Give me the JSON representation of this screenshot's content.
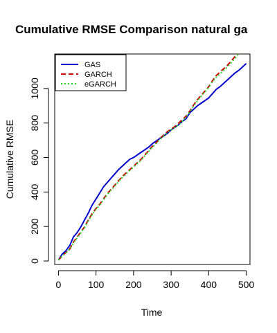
{
  "chart_data": {
    "type": "line",
    "title": "Cumulative RMSE Comparison natural ga",
    "xlabel": "Time",
    "ylabel": "Cumulative RMSE",
    "xlim": [
      -10,
      510
    ],
    "ylim": [
      -20,
      1200
    ],
    "xticks": [
      0,
      100,
      200,
      300,
      400,
      500
    ],
    "yticks": [
      0,
      200,
      400,
      600,
      800,
      1000
    ],
    "legend_position": "top-left",
    "series": [
      {
        "name": "GAS",
        "color": "#0000cd",
        "dash": "solid",
        "x": [
          0,
          10,
          20,
          30,
          40,
          50,
          60,
          70,
          80,
          90,
          100,
          110,
          120,
          130,
          140,
          150,
          160,
          170,
          180,
          190,
          200,
          210,
          220,
          230,
          240,
          250,
          260,
          270,
          280,
          290,
          300,
          310,
          320,
          330,
          340,
          350,
          360,
          370,
          380,
          390,
          400,
          410,
          420,
          430,
          440,
          450,
          460,
          470,
          480,
          490,
          500
        ],
        "y": [
          5,
          40,
          60,
          90,
          140,
          165,
          200,
          240,
          280,
          325,
          360,
          395,
          430,
          455,
          480,
          505,
          530,
          550,
          570,
          590,
          600,
          615,
          630,
          645,
          660,
          680,
          695,
          710,
          725,
          740,
          760,
          775,
          790,
          810,
          825,
          860,
          880,
          900,
          915,
          930,
          945,
          970,
          995,
          1010,
          1030,
          1050,
          1070,
          1090,
          1105,
          1125,
          1145
        ]
      },
      {
        "name": "GARCH",
        "color": "#cc0000",
        "dash": "dashed",
        "x": [
          0,
          10,
          20,
          30,
          40,
          50,
          60,
          70,
          80,
          90,
          100,
          110,
          120,
          130,
          140,
          150,
          160,
          170,
          180,
          190,
          200,
          210,
          220,
          230,
          240,
          250,
          260,
          270,
          280,
          290,
          300,
          310,
          320,
          330,
          340,
          350,
          360,
          370,
          380,
          390,
          400,
          410,
          420,
          430,
          440,
          450,
          460,
          470,
          480
        ],
        "y": [
          5,
          30,
          50,
          70,
          110,
          140,
          170,
          200,
          240,
          275,
          305,
          330,
          360,
          390,
          415,
          440,
          465,
          490,
          510,
          530,
          550,
          570,
          590,
          615,
          640,
          665,
          685,
          710,
          730,
          750,
          765,
          780,
          800,
          820,
          840,
          870,
          905,
          935,
          960,
          985,
          1010,
          1045,
          1075,
          1095,
          1115,
          1135,
          1160,
          1185,
          1205
        ]
      },
      {
        "name": "eGARCH",
        "color": "#22dd22",
        "dash": "dotted",
        "x": [
          0,
          10,
          20,
          30,
          40,
          50,
          60,
          70,
          80,
          90,
          100,
          110,
          120,
          130,
          140,
          150,
          160,
          170,
          180,
          190,
          200,
          210,
          220,
          230,
          240,
          250,
          260,
          270,
          280,
          290,
          300,
          310,
          320,
          330,
          340,
          350,
          360,
          370,
          380,
          390,
          400,
          410,
          420,
          430,
          440,
          450,
          460,
          470,
          480
        ],
        "y": [
          5,
          28,
          48,
          68,
          105,
          135,
          165,
          195,
          235,
          270,
          300,
          325,
          355,
          385,
          410,
          435,
          460,
          485,
          505,
          525,
          545,
          565,
          585,
          610,
          635,
          660,
          680,
          705,
          725,
          745,
          760,
          775,
          790,
          810,
          835,
          865,
          900,
          930,
          955,
          980,
          1005,
          1040,
          1065,
          1085,
          1105,
          1125,
          1150,
          1175,
          1200
        ]
      }
    ]
  }
}
